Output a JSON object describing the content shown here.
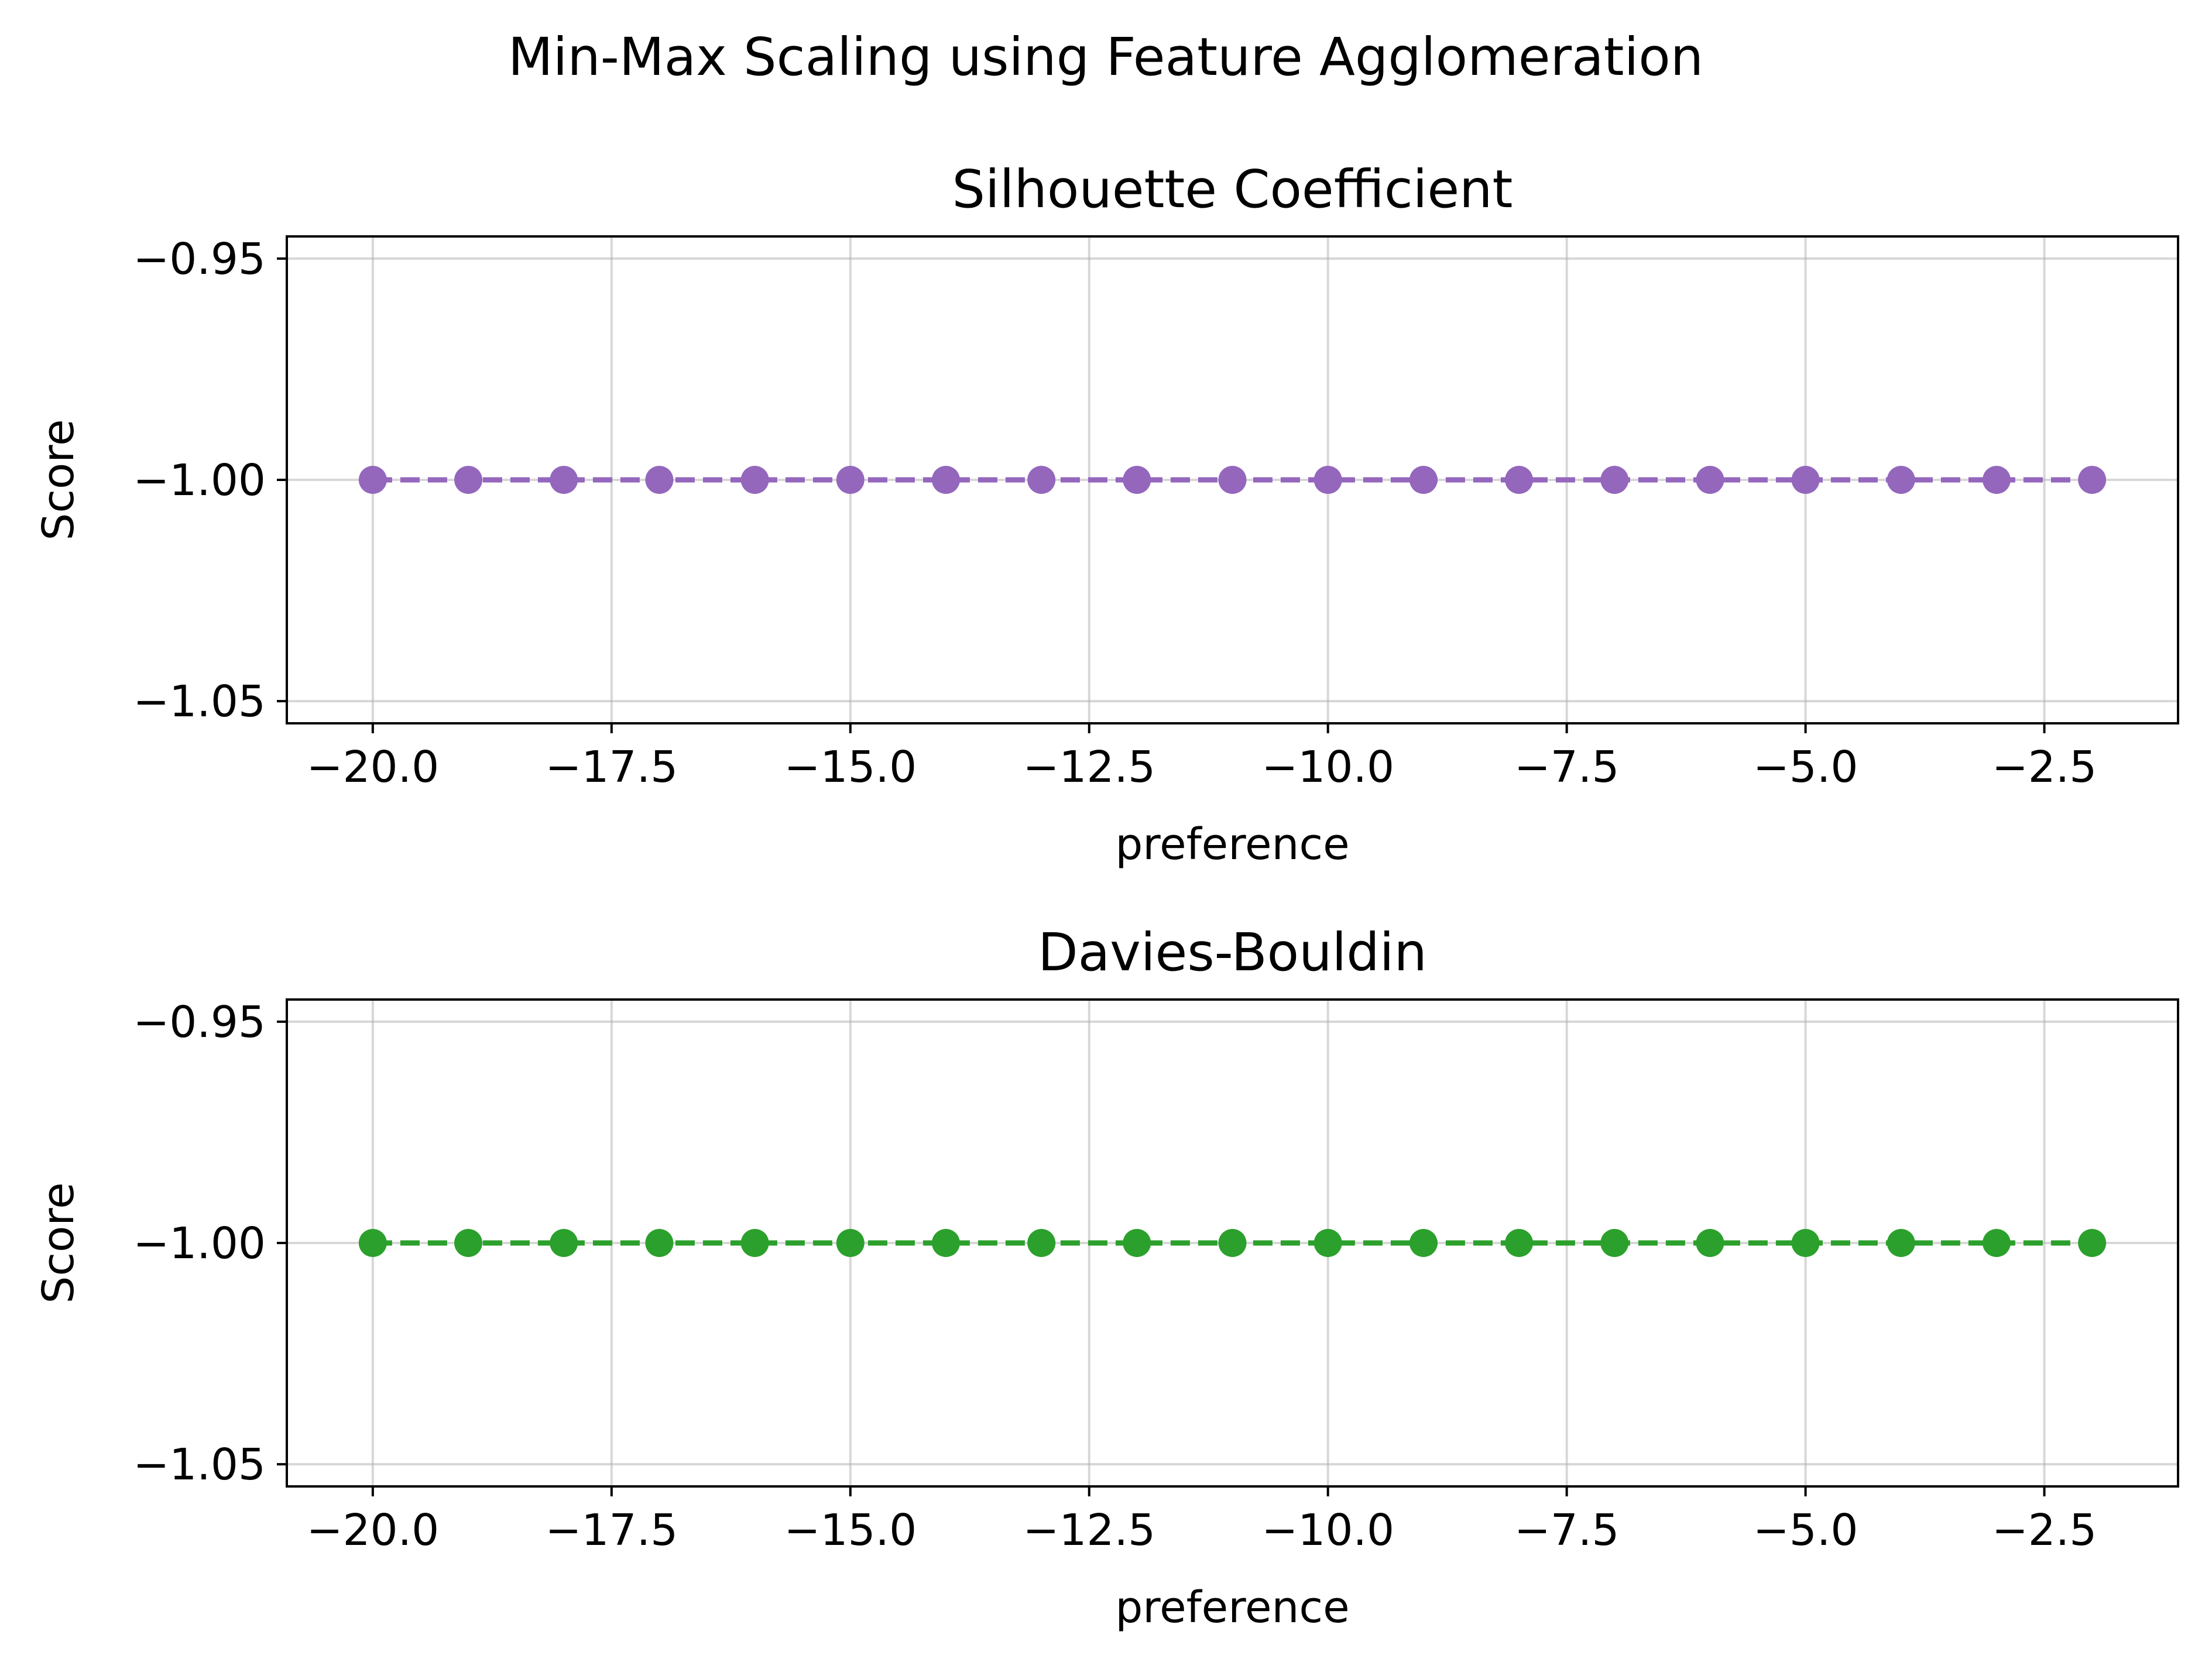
{
  "figure": {
    "suptitle": "Min-Max Scaling using Feature Agglomeration"
  },
  "chart_data": [
    {
      "type": "line",
      "title": "Silhouette Coefficient",
      "xlabel": "preference",
      "ylabel": "Score",
      "xlim": [
        -20.9,
        -1.1
      ],
      "ylim": [
        -1.055,
        -0.945
      ],
      "xticks": [
        -20.0,
        -17.5,
        -15.0,
        -12.5,
        -10.0,
        -7.5,
        -5.0,
        -2.5
      ],
      "xtick_labels": [
        "−20.0",
        "−17.5",
        "−15.0",
        "−12.5",
        "−10.0",
        "−7.5",
        "−5.0",
        "−2.5"
      ],
      "yticks": [
        -0.95,
        -1.0,
        -1.05
      ],
      "ytick_labels": [
        "−0.95",
        "−1.00",
        "−1.05"
      ],
      "grid": true,
      "line_style": "dashed",
      "marker": "circle",
      "color": "#9467bd",
      "series": [
        {
          "x": [
            -20,
            -19,
            -18,
            -17,
            -16,
            -15,
            -14,
            -13,
            -12,
            -11,
            -10,
            -9,
            -8,
            -7,
            -6,
            -5,
            -4,
            -3,
            -2
          ],
          "values": [
            -1,
            -1,
            -1,
            -1,
            -1,
            -1,
            -1,
            -1,
            -1,
            -1,
            -1,
            -1,
            -1,
            -1,
            -1,
            -1,
            -1,
            -1,
            -1
          ]
        }
      ]
    },
    {
      "type": "line",
      "title": "Davies-Bouldin",
      "xlabel": "preference",
      "ylabel": "Score",
      "xlim": [
        -20.9,
        -1.1
      ],
      "ylim": [
        -1.055,
        -0.945
      ],
      "xticks": [
        -20.0,
        -17.5,
        -15.0,
        -12.5,
        -10.0,
        -7.5,
        -5.0,
        -2.5
      ],
      "xtick_labels": [
        "−20.0",
        "−17.5",
        "−15.0",
        "−12.5",
        "−10.0",
        "−7.5",
        "−5.0",
        "−2.5"
      ],
      "yticks": [
        -0.95,
        -1.0,
        -1.05
      ],
      "ytick_labels": [
        "−0.95",
        "−1.00",
        "−1.05"
      ],
      "grid": true,
      "line_style": "dashed",
      "marker": "circle",
      "color": "#2ca02c",
      "series": [
        {
          "x": [
            -20,
            -19,
            -18,
            -17,
            -16,
            -15,
            -14,
            -13,
            -12,
            -11,
            -10,
            -9,
            -8,
            -7,
            -6,
            -5,
            -4,
            -3,
            -2
          ],
          "values": [
            -1,
            -1,
            -1,
            -1,
            -1,
            -1,
            -1,
            -1,
            -1,
            -1,
            -1,
            -1,
            -1,
            -1,
            -1,
            -1,
            -1,
            -1,
            -1
          ]
        }
      ]
    }
  ]
}
